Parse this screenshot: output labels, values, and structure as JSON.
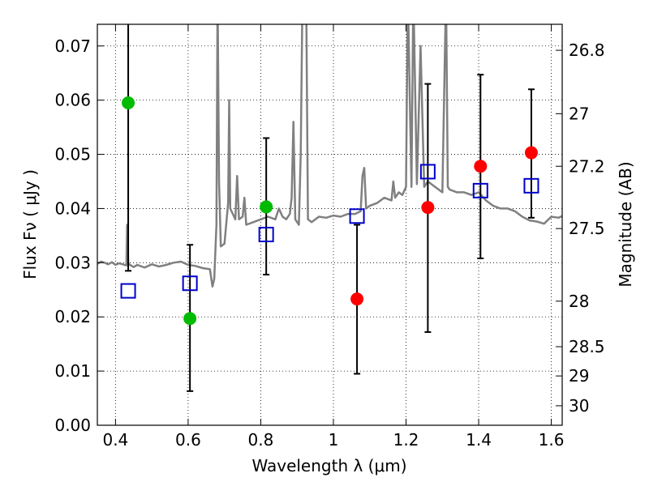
{
  "chart_data": {
    "type": "scatter",
    "xlabel": "Wavelength  λ (μm)",
    "ylabel": "Flux  Fν  ( μJy )",
    "y2label": "Magnitude (AB)",
    "xlim": [
      0.35,
      1.63
    ],
    "ylim": [
      0.0,
      0.074
    ],
    "x_ticks": [
      0.4,
      0.6,
      0.8,
      1.0,
      1.2,
      1.4,
      1.6
    ],
    "x_tick_labels": [
      "0.4",
      "0.6",
      "0.8",
      "1",
      "1.2",
      "1.4",
      "1.6"
    ],
    "y_ticks": [
      0.0,
      0.01,
      0.02,
      0.03,
      0.04,
      0.05,
      0.06,
      0.07
    ],
    "y_tick_labels": [
      "0.00",
      "0.01",
      "0.02",
      "0.03",
      "0.04",
      "0.05",
      "0.06",
      "0.07"
    ],
    "y2_ticks": [
      {
        "label": "26.8",
        "flux": 0.0692
      },
      {
        "label": "27",
        "flux": 0.0575
      },
      {
        "label": "27.2",
        "flux": 0.0478
      },
      {
        "label": "27.5",
        "flux": 0.0363
      },
      {
        "label": "28",
        "flux": 0.0229
      },
      {
        "label": "28.5",
        "flux": 0.0145
      },
      {
        "label": "29",
        "flux": 0.0091
      },
      {
        "label": "30",
        "flux": 0.0036
      }
    ],
    "grid": true,
    "colors": {
      "spectrum": "#808080",
      "green": "#00bb00",
      "red": "#ff0000",
      "square": "#0000cc",
      "errorbar": "#000000"
    },
    "spectrum": [
      [
        0.35,
        0.0298
      ],
      [
        0.36,
        0.0302
      ],
      [
        0.37,
        0.03
      ],
      [
        0.38,
        0.0297
      ],
      [
        0.39,
        0.0301
      ],
      [
        0.4,
        0.0296
      ],
      [
        0.41,
        0.0299
      ],
      [
        0.42,
        0.0297
      ],
      [
        0.43,
        0.0295
      ],
      [
        0.432,
        0.037
      ],
      [
        0.435,
        0.0298
      ],
      [
        0.45,
        0.0292
      ],
      [
        0.46,
        0.0296
      ],
      [
        0.48,
        0.0291
      ],
      [
        0.5,
        0.0297
      ],
      [
        0.52,
        0.0293
      ],
      [
        0.54,
        0.0296
      ],
      [
        0.56,
        0.03
      ],
      [
        0.58,
        0.0302
      ],
      [
        0.6,
        0.0296
      ],
      [
        0.62,
        0.0294
      ],
      [
        0.64,
        0.029
      ],
      [
        0.66,
        0.0288
      ],
      [
        0.667,
        0.0256
      ],
      [
        0.672,
        0.027
      ],
      [
        0.678,
        0.037
      ],
      [
        0.681,
        0.08
      ],
      [
        0.685,
        0.045
      ],
      [
        0.69,
        0.033
      ],
      [
        0.7,
        0.0335
      ],
      [
        0.71,
        0.041
      ],
      [
        0.713,
        0.06
      ],
      [
        0.716,
        0.04
      ],
      [
        0.73,
        0.038
      ],
      [
        0.735,
        0.046
      ],
      [
        0.74,
        0.038
      ],
      [
        0.75,
        0.0385
      ],
      [
        0.755,
        0.042
      ],
      [
        0.76,
        0.037
      ],
      [
        0.78,
        0.0375
      ],
      [
        0.8,
        0.038
      ],
      [
        0.82,
        0.0385
      ],
      [
        0.84,
        0.038
      ],
      [
        0.85,
        0.04
      ],
      [
        0.86,
        0.0385
      ],
      [
        0.87,
        0.038
      ],
      [
        0.88,
        0.039
      ],
      [
        0.885,
        0.042
      ],
      [
        0.89,
        0.056
      ],
      [
        0.895,
        0.038
      ],
      [
        0.905,
        0.037
      ],
      [
        0.91,
        0.05
      ],
      [
        0.915,
        0.08
      ],
      [
        0.925,
        0.08
      ],
      [
        0.93,
        0.038
      ],
      [
        0.94,
        0.0375
      ],
      [
        0.96,
        0.0385
      ],
      [
        0.98,
        0.0383
      ],
      [
        1.0,
        0.0387
      ],
      [
        1.02,
        0.0385
      ],
      [
        1.04,
        0.039
      ],
      [
        1.06,
        0.039
      ],
      [
        1.075,
        0.0395
      ],
      [
        1.08,
        0.046
      ],
      [
        1.085,
        0.0475
      ],
      [
        1.09,
        0.04
      ],
      [
        1.1,
        0.0405
      ],
      [
        1.12,
        0.041
      ],
      [
        1.14,
        0.042
      ],
      [
        1.16,
        0.0415
      ],
      [
        1.165,
        0.045
      ],
      [
        1.17,
        0.042
      ],
      [
        1.18,
        0.043
      ],
      [
        1.19,
        0.0425
      ],
      [
        1.2,
        0.044
      ],
      [
        1.205,
        0.08
      ],
      [
        1.215,
        0.044
      ],
      [
        1.22,
        0.08
      ],
      [
        1.23,
        0.0445
      ],
      [
        1.24,
        0.07
      ],
      [
        1.25,
        0.044
      ],
      [
        1.26,
        0.045
      ],
      [
        1.28,
        0.044
      ],
      [
        1.3,
        0.043
      ],
      [
        1.31,
        0.08
      ],
      [
        1.315,
        0.044
      ],
      [
        1.32,
        0.0435
      ],
      [
        1.34,
        0.043
      ],
      [
        1.36,
        0.043
      ],
      [
        1.38,
        0.0425
      ],
      [
        1.4,
        0.043
      ],
      [
        1.42,
        0.0415
      ],
      [
        1.44,
        0.0405
      ],
      [
        1.46,
        0.04
      ],
      [
        1.48,
        0.04
      ],
      [
        1.5,
        0.0395
      ],
      [
        1.52,
        0.0385
      ],
      [
        1.54,
        0.0378
      ],
      [
        1.56,
        0.0376
      ],
      [
        1.58,
        0.0372
      ],
      [
        1.6,
        0.0385
      ],
      [
        1.62,
        0.0383
      ],
      [
        1.63,
        0.0386
      ]
    ],
    "errorbars": [
      {
        "x": 0.435,
        "low": 0.0285,
        "high": 0.075
      },
      {
        "x": 0.605,
        "low": 0.0063,
        "high": 0.0333
      },
      {
        "x": 0.815,
        "low": 0.0278,
        "high": 0.053
      },
      {
        "x": 1.065,
        "low": 0.0095,
        "high": 0.037
      },
      {
        "x": 1.26,
        "low": 0.0172,
        "high": 0.063
      },
      {
        "x": 1.405,
        "low": 0.0308,
        "high": 0.0647
      },
      {
        "x": 1.545,
        "low": 0.0383,
        "high": 0.062
      }
    ],
    "green_points": [
      {
        "x": 0.435,
        "y": 0.0595
      },
      {
        "x": 0.605,
        "y": 0.0197
      },
      {
        "x": 0.815,
        "y": 0.0403
      }
    ],
    "red_points": [
      {
        "x": 1.065,
        "y": 0.0233
      },
      {
        "x": 1.26,
        "y": 0.0402
      },
      {
        "x": 1.405,
        "y": 0.0478
      },
      {
        "x": 1.545,
        "y": 0.0503
      }
    ],
    "squares": [
      {
        "x": 0.435,
        "y": 0.0248
      },
      {
        "x": 0.605,
        "y": 0.0262
      },
      {
        "x": 0.815,
        "y": 0.0352
      },
      {
        "x": 1.065,
        "y": 0.0386
      },
      {
        "x": 1.26,
        "y": 0.0468
      },
      {
        "x": 1.405,
        "y": 0.0433
      },
      {
        "x": 1.545,
        "y": 0.0442
      }
    ]
  }
}
